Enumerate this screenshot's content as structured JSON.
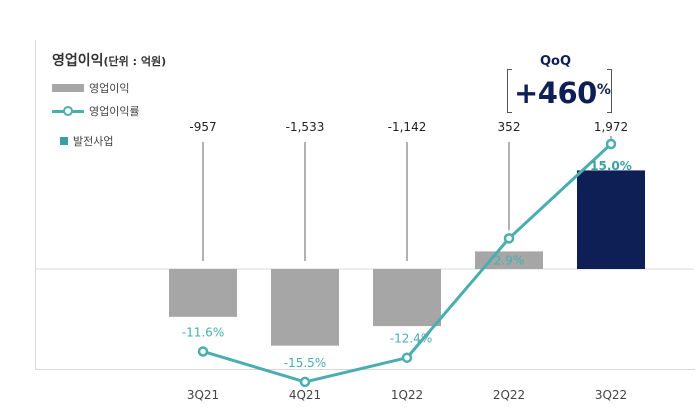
{
  "title": "영업이익",
  "unit": "(단위 : 억원)",
  "legend": {
    "bar": "영업이익",
    "line": "영업이익률",
    "highlight": "발전사업"
  },
  "qoq": {
    "label": "QoQ",
    "value": "+460",
    "suffix": "%"
  },
  "colors": {
    "bar": "#a6a6a6",
    "highlight_bar": "#0e1f56",
    "line": "#4aaeb0",
    "margin_label": "#4aaeb0",
    "highlight_label": "#3b9ea6",
    "value_label": "#222222",
    "axis": "#d9d9d9",
    "leader": "#666666"
  },
  "chart_data": {
    "type": "bar",
    "categories": [
      "3Q21",
      "4Q21",
      "1Q22",
      "2Q22",
      "3Q22"
    ],
    "series": [
      {
        "name": "영업이익",
        "type": "bar",
        "values": [
          -957,
          -1533,
          -1142,
          352,
          1972
        ],
        "labels": [
          "-957",
          "-1,533",
          "-1,142",
          "352",
          "1,972"
        ],
        "highlight_index": 4
      },
      {
        "name": "영업이익률",
        "type": "line",
        "values": [
          -11.6,
          -15.5,
          -12.4,
          2.9,
          15.0
        ],
        "labels": [
          "-11.6%",
          "-15.5%",
          "-12.4%",
          "2.9%",
          "15.0%"
        ]
      }
    ],
    "grid": false,
    "legend_position": "top-left"
  }
}
